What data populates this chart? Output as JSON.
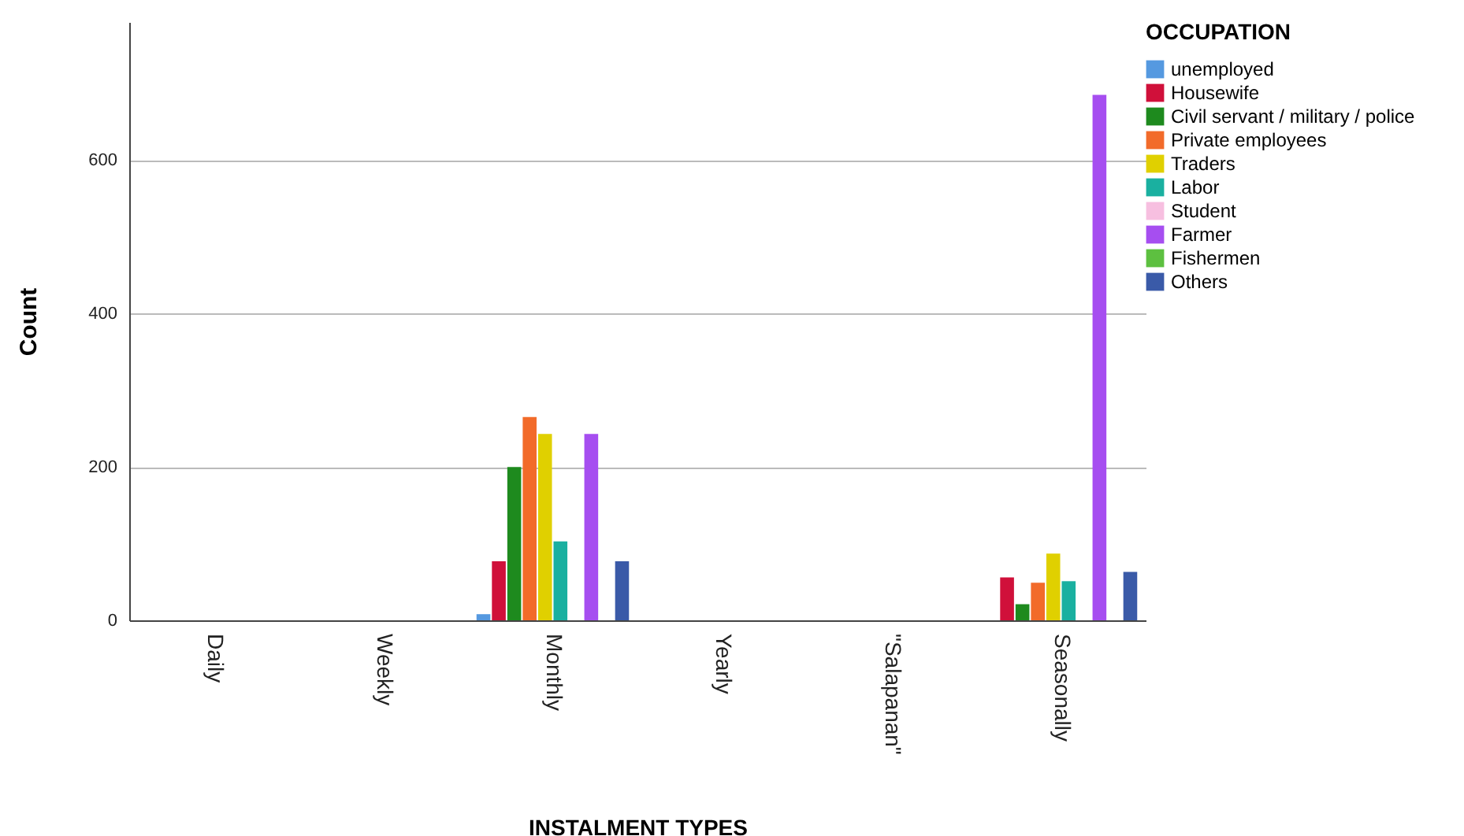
{
  "chart_data": {
    "type": "bar",
    "xlabel": "INSTALMENT TYPES",
    "ylabel": "Count",
    "legend_title": "OCCUPATION",
    "categories": [
      "Daily",
      "Weekly",
      "Monthly",
      "Yearly",
      "\"Salapanan\"",
      "Seasonally"
    ],
    "series": [
      {
        "name": "unemployed",
        "color": "#5599e0",
        "values": [
          0,
          0,
          8,
          0,
          0,
          0
        ]
      },
      {
        "name": "Housewife",
        "color": "#d0103a",
        "values": [
          0,
          0,
          77,
          0,
          0,
          56
        ]
      },
      {
        "name": "Civil servant / military / police",
        "color": "#1e8a1e",
        "values": [
          0,
          0,
          200,
          0,
          0,
          21
        ]
      },
      {
        "name": "Private employees",
        "color": "#f26b2a",
        "values": [
          0,
          0,
          265,
          0,
          0,
          49
        ]
      },
      {
        "name": "Traders",
        "color": "#e0d000",
        "values": [
          0,
          0,
          243,
          0,
          0,
          87
        ]
      },
      {
        "name": "Labor",
        "color": "#1ab0a0",
        "values": [
          0,
          0,
          103,
          0,
          0,
          51
        ]
      },
      {
        "name": "Student",
        "color": "#f7bfe0",
        "values": [
          0,
          0,
          0,
          0,
          0,
          0
        ]
      },
      {
        "name": "Farmer",
        "color": "#a64ef0",
        "values": [
          0,
          0,
          243,
          0,
          0,
          685
        ]
      },
      {
        "name": "Fishermen",
        "color": "#5dc040",
        "values": [
          0,
          0,
          0,
          0,
          0,
          0
        ]
      },
      {
        "name": "Others",
        "color": "#3a5aa8",
        "values": [
          0,
          0,
          77,
          0,
          0,
          63
        ]
      }
    ],
    "ylim": [
      0,
      780
    ],
    "yticks": [
      0,
      200,
      400,
      600
    ],
    "grid": "y",
    "legend": "top right"
  }
}
